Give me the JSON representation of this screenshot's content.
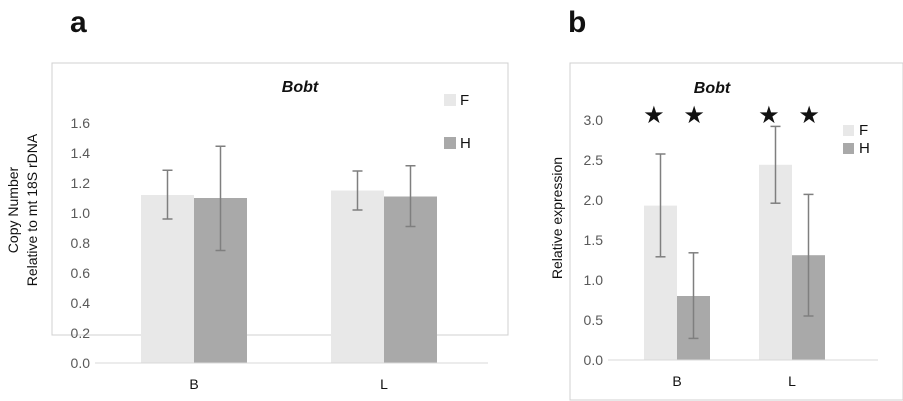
{
  "panels": [
    {
      "label": "a"
    },
    {
      "label": "b"
    }
  ],
  "colors": {
    "F": "#e8e8e8",
    "H": "#a9a9a9",
    "error": "#7f7f7f",
    "axis_text": "#595959",
    "frame": "#d0d0d0",
    "star": "#111111"
  },
  "chart_data": [
    {
      "type": "bar",
      "title": "Bobt",
      "ylabel": "Copy Number\nRelative to mt 18S rDNA",
      "xlabel": "",
      "categories": [
        "B",
        "L"
      ],
      "ylim": [
        0,
        1.6
      ],
      "yticks": [
        "0.0",
        "0.2",
        "0.4",
        "0.6",
        "0.8",
        "1.0",
        "1.2",
        "1.4",
        "1.6"
      ],
      "series": [
        {
          "name": "F",
          "values": [
            1.12,
            1.15
          ],
          "err_low": [
            0.96,
            1.02
          ],
          "err_high": [
            1.285,
            1.28
          ]
        },
        {
          "name": "H",
          "values": [
            1.1,
            1.11
          ],
          "err_low": [
            0.75,
            0.91
          ],
          "err_high": [
            1.445,
            1.315
          ]
        }
      ],
      "legend": "top-right",
      "grid": false,
      "annotations": []
    },
    {
      "type": "bar",
      "title": "Bobt",
      "ylabel": "Relative expression",
      "xlabel": "",
      "categories": [
        "B",
        "L"
      ],
      "ylim": [
        0,
        3.0
      ],
      "yticks": [
        "0.0",
        "0.5",
        "1.0",
        "1.5",
        "2.0",
        "2.5",
        "3.0"
      ],
      "series": [
        {
          "name": "F",
          "values": [
            1.93,
            2.44
          ],
          "err_low": [
            1.29,
            1.96
          ],
          "err_high": [
            2.575,
            2.92
          ]
        },
        {
          "name": "H",
          "values": [
            0.8,
            1.31
          ],
          "err_low": [
            0.27,
            0.55
          ],
          "err_high": [
            1.34,
            2.07
          ]
        }
      ],
      "legend": "top-right",
      "grid": false,
      "annotations": [
        {
          "category": "B",
          "text": "★ ★"
        },
        {
          "category": "L",
          "text": "★ ★"
        }
      ]
    }
  ]
}
